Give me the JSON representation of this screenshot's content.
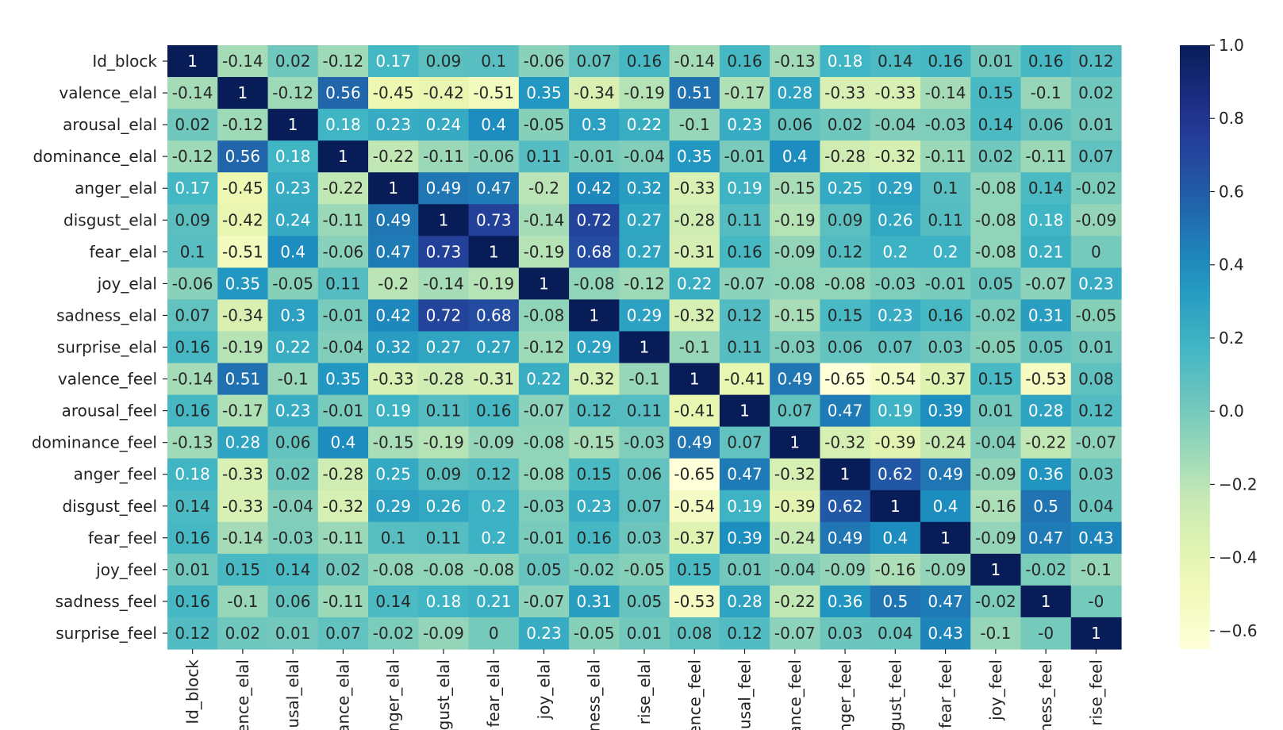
{
  "chart_data": {
    "type": "heatmap",
    "title": "",
    "xlabel": "",
    "ylabel": "",
    "colormap": "YlGnBu",
    "vmin": -0.65,
    "vmax": 1.0,
    "labels_y": [
      "Id_block",
      "valence_elal",
      "arousal_elal",
      "dominance_elal",
      "anger_elal",
      "disgust_elal",
      "fear_elal",
      "joy_elal",
      "sadness_elal",
      "surprise_elal",
      "valence_feel",
      "arousal_feel",
      "dominance_feel",
      "anger_feel",
      "disgust_feel",
      "fear_feel",
      "joy_feel",
      "sadness_feel",
      "surprise_feel"
    ],
    "labels_x": [
      "Id_block",
      "ence_elal",
      "usal_elal",
      "ance_elal",
      "nger_elal",
      "gust_elal",
      "fear_elal",
      "joy_elal",
      "ness_elal",
      "rise_elal",
      "ence_feel",
      "usal_feel",
      "ance_feel",
      "nger_feel",
      "gust_feel",
      "fear_feel",
      "joy_feel",
      "ness_feel",
      "rise_feel"
    ],
    "matrix_text": [
      [
        "1",
        "-0.14",
        "0.02",
        "-0.12",
        "0.17",
        "0.09",
        "0.1",
        "-0.06",
        "0.07",
        "0.16",
        "-0.14",
        "0.16",
        "-0.13",
        "0.18",
        "0.14",
        "0.16",
        "0.01",
        "0.16",
        "0.12"
      ],
      [
        "-0.14",
        "1",
        "-0.12",
        "0.56",
        "-0.45",
        "-0.42",
        "-0.51",
        "0.35",
        "-0.34",
        "-0.19",
        "0.51",
        "-0.17",
        "0.28",
        "-0.33",
        "-0.33",
        "-0.14",
        "0.15",
        "-0.1",
        "0.02"
      ],
      [
        "0.02",
        "-0.12",
        "1",
        "0.18",
        "0.23",
        "0.24",
        "0.4",
        "-0.05",
        "0.3",
        "0.22",
        "-0.1",
        "0.23",
        "0.06",
        "0.02",
        "-0.04",
        "-0.03",
        "0.14",
        "0.06",
        "0.01"
      ],
      [
        "-0.12",
        "0.56",
        "0.18",
        "1",
        "-0.22",
        "-0.11",
        "-0.06",
        "0.11",
        "-0.01",
        "-0.04",
        "0.35",
        "-0.01",
        "0.4",
        "-0.28",
        "-0.32",
        "-0.11",
        "0.02",
        "-0.11",
        "0.07"
      ],
      [
        "0.17",
        "-0.45",
        "0.23",
        "-0.22",
        "1",
        "0.49",
        "0.47",
        "-0.2",
        "0.42",
        "0.32",
        "-0.33",
        "0.19",
        "-0.15",
        "0.25",
        "0.29",
        "0.1",
        "-0.08",
        "0.14",
        "-0.02"
      ],
      [
        "0.09",
        "-0.42",
        "0.24",
        "-0.11",
        "0.49",
        "1",
        "0.73",
        "-0.14",
        "0.72",
        "0.27",
        "-0.28",
        "0.11",
        "-0.19",
        "0.09",
        "0.26",
        "0.11",
        "-0.08",
        "0.18",
        "-0.09"
      ],
      [
        "0.1",
        "-0.51",
        "0.4",
        "-0.06",
        "0.47",
        "0.73",
        "1",
        "-0.19",
        "0.68",
        "0.27",
        "-0.31",
        "0.16",
        "-0.09",
        "0.12",
        "0.2",
        "0.2",
        "-0.08",
        "0.21",
        "0"
      ],
      [
        "-0.06",
        "0.35",
        "-0.05",
        "0.11",
        "-0.2",
        "-0.14",
        "-0.19",
        "1",
        "-0.08",
        "-0.12",
        "0.22",
        "-0.07",
        "-0.08",
        "-0.08",
        "-0.03",
        "-0.01",
        "0.05",
        "-0.07",
        "0.23"
      ],
      [
        "0.07",
        "-0.34",
        "0.3",
        "-0.01",
        "0.42",
        "0.72",
        "0.68",
        "-0.08",
        "1",
        "0.29",
        "-0.32",
        "0.12",
        "-0.15",
        "0.15",
        "0.23",
        "0.16",
        "-0.02",
        "0.31",
        "-0.05"
      ],
      [
        "0.16",
        "-0.19",
        "0.22",
        "-0.04",
        "0.32",
        "0.27",
        "0.27",
        "-0.12",
        "0.29",
        "1",
        "-0.1",
        "0.11",
        "-0.03",
        "0.06",
        "0.07",
        "0.03",
        "-0.05",
        "0.05",
        "0.01"
      ],
      [
        "-0.14",
        "0.51",
        "-0.1",
        "0.35",
        "-0.33",
        "-0.28",
        "-0.31",
        "0.22",
        "-0.32",
        "-0.1",
        "1",
        "-0.41",
        "0.49",
        "-0.65",
        "-0.54",
        "-0.37",
        "0.15",
        "-0.53",
        "0.08"
      ],
      [
        "0.16",
        "-0.17",
        "0.23",
        "-0.01",
        "0.19",
        "0.11",
        "0.16",
        "-0.07",
        "0.12",
        "0.11",
        "-0.41",
        "1",
        "0.07",
        "0.47",
        "0.19",
        "0.39",
        "0.01",
        "0.28",
        "0.12"
      ],
      [
        "-0.13",
        "0.28",
        "0.06",
        "0.4",
        "-0.15",
        "-0.19",
        "-0.09",
        "-0.08",
        "-0.15",
        "-0.03",
        "0.49",
        "0.07",
        "1",
        "-0.32",
        "-0.39",
        "-0.24",
        "-0.04",
        "-0.22",
        "-0.07"
      ],
      [
        "0.18",
        "-0.33",
        "0.02",
        "-0.28",
        "0.25",
        "0.09",
        "0.12",
        "-0.08",
        "0.15",
        "0.06",
        "-0.65",
        "0.47",
        "-0.32",
        "1",
        "0.62",
        "0.49",
        "-0.09",
        "0.36",
        "0.03"
      ],
      [
        "0.14",
        "-0.33",
        "-0.04",
        "-0.32",
        "0.29",
        "0.26",
        "0.2",
        "-0.03",
        "0.23",
        "0.07",
        "-0.54",
        "0.19",
        "-0.39",
        "0.62",
        "1",
        "0.4",
        "-0.16",
        "0.5",
        "0.04"
      ],
      [
        "0.16",
        "-0.14",
        "-0.03",
        "-0.11",
        "0.1",
        "0.11",
        "0.2",
        "-0.01",
        "0.16",
        "0.03",
        "-0.37",
        "0.39",
        "-0.24",
        "0.49",
        "0.4",
        "1",
        "-0.09",
        "0.47",
        "0.43"
      ],
      [
        "0.01",
        "0.15",
        "0.14",
        "0.02",
        "-0.08",
        "-0.08",
        "-0.08",
        "0.05",
        "-0.02",
        "-0.05",
        "0.15",
        "0.01",
        "-0.04",
        "-0.09",
        "-0.16",
        "-0.09",
        "1",
        "-0.02",
        "-0.1"
      ],
      [
        "0.16",
        "-0.1",
        "0.06",
        "-0.11",
        "0.14",
        "0.18",
        "0.21",
        "-0.07",
        "0.31",
        "0.05",
        "-0.53",
        "0.28",
        "-0.22",
        "0.36",
        "0.5",
        "0.47",
        "-0.02",
        "1",
        "-0"
      ],
      [
        "0.12",
        "0.02",
        "0.01",
        "0.07",
        "-0.02",
        "-0.09",
        "0",
        "0.23",
        "-0.05",
        "0.01",
        "0.08",
        "0.12",
        "-0.07",
        "0.03",
        "0.04",
        "0.43",
        "-0.1",
        "-0",
        "1"
      ]
    ],
    "colorbar": {
      "ticks": [
        1.0,
        0.8,
        0.6,
        0.4,
        0.2,
        0.0,
        -0.2,
        -0.4,
        -0.6
      ],
      "tick_labels": [
        "1.0",
        "0.8",
        "0.6",
        "0.4",
        "0.2",
        "0.0",
        "−0.2",
        "−0.4",
        "−0.6"
      ]
    },
    "grid": false,
    "legend": "colorbar-right"
  }
}
